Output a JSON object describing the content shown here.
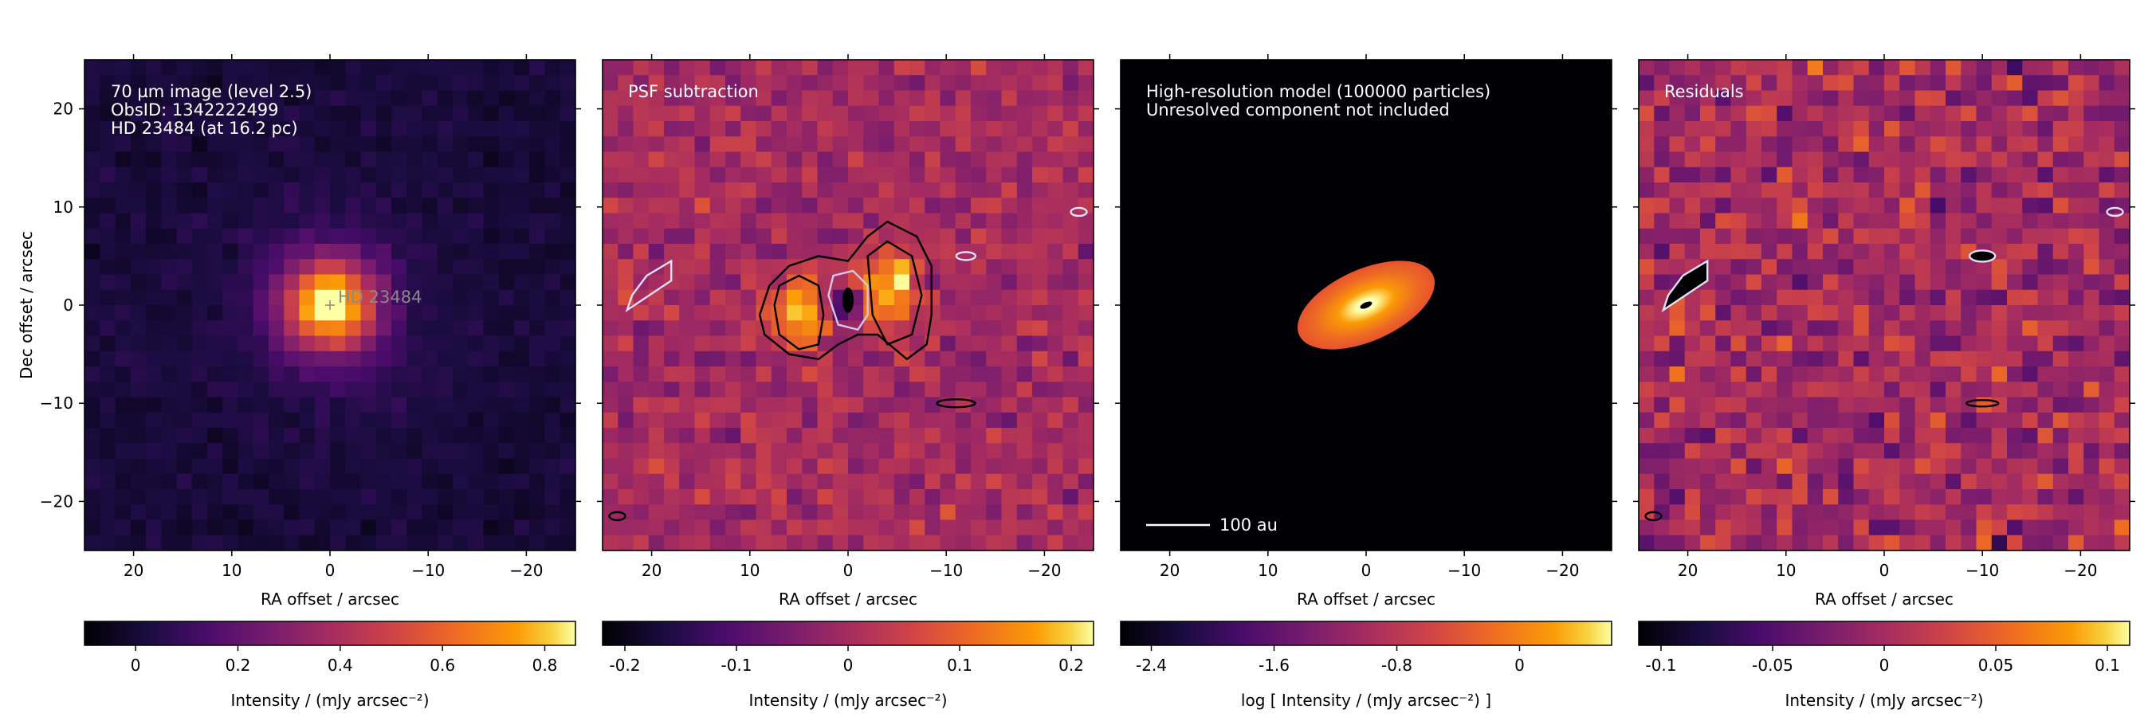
{
  "chart_data": [
    {
      "type": "heatmap",
      "panel": "observed",
      "xlabel": "RA offset / arcsec",
      "ylabel": "Dec offset / arcsec",
      "xlim": [
        25,
        -25
      ],
      "ylim": [
        -25,
        25
      ],
      "xticks": [
        20,
        10,
        0,
        -10,
        -20
      ],
      "yticks": [
        20,
        10,
        0,
        -10,
        -20
      ],
      "xtick_labels": [
        "20",
        "10",
        "0",
        "−10",
        "−20"
      ],
      "ytick_labels": [
        "20",
        "10",
        "0",
        "−10",
        "−20"
      ],
      "annotation_lines": [
        "70 µm image (level 2.5)",
        "ObsID: 1342222499",
        "HD 23484 (at 16.2 pc)"
      ],
      "source_label": "HD 23484",
      "source_position": [
        0,
        0
      ],
      "colormap": "inferno",
      "colorbar": {
        "label": "Intensity / (mJy arcsec⁻²)",
        "range": [
          -0.1,
          0.86
        ],
        "ticks": [
          0,
          0.2,
          0.4,
          0.6,
          0.8
        ],
        "tick_labels": [
          "0",
          "0.2",
          "0.4",
          "0.6",
          "0.8"
        ]
      }
    },
    {
      "type": "heatmap",
      "panel": "psf_subtracted",
      "xlabel": "RA offset / arcsec",
      "xlim": [
        25,
        -25
      ],
      "ylim": [
        -25,
        25
      ],
      "xticks": [
        20,
        10,
        0,
        -10,
        -20
      ],
      "xtick_labels": [
        "20",
        "10",
        "0",
        "−10",
        "−20"
      ],
      "annotation_lines": [
        "PSF subtraction"
      ],
      "colormap": "inferno",
      "contours": true,
      "colorbar": {
        "label": "Intensity / (mJy arcsec⁻²)",
        "range": [
          -0.22,
          0.22
        ],
        "ticks": [
          -0.2,
          -0.1,
          0,
          0.1,
          0.2
        ],
        "tick_labels": [
          "-0.2",
          "-0.1",
          "0",
          "0.1",
          "0.2"
        ]
      }
    },
    {
      "type": "heatmap",
      "panel": "model",
      "xlabel": "RA offset / arcsec",
      "xlim": [
        25,
        -25
      ],
      "ylim": [
        -25,
        25
      ],
      "xticks": [
        20,
        10,
        0,
        -10,
        -20
      ],
      "xtick_labels": [
        "20",
        "10",
        "0",
        "−10",
        "−20"
      ],
      "annotation_lines": [
        "High-resolution model (100000 particles)",
        "Unresolved component not included"
      ],
      "scalebar_label": "100 au",
      "colormap": "inferno",
      "colorbar": {
        "label": "log [ Intensity / (mJy arcsec⁻²) ]",
        "range": [
          -2.6,
          0.6
        ],
        "ticks": [
          -2.4,
          -1.6,
          -0.8,
          0
        ],
        "tick_labels": [
          "-2.4",
          "-1.6",
          "-0.8",
          "0"
        ]
      }
    },
    {
      "type": "heatmap",
      "panel": "residuals",
      "xlabel": "RA offset / arcsec",
      "xlim": [
        25,
        -25
      ],
      "ylim": [
        -25,
        25
      ],
      "xticks": [
        20,
        10,
        0,
        -10,
        -20
      ],
      "xtick_labels": [
        "20",
        "10",
        "0",
        "−10",
        "−20"
      ],
      "annotation_lines": [
        "Residuals"
      ],
      "colormap": "inferno",
      "contours": true,
      "colorbar": {
        "label": "Intensity / (mJy arcsec⁻²)",
        "range": [
          -0.11,
          0.11
        ],
        "ticks": [
          -0.1,
          -0.05,
          0,
          0.05,
          0.1
        ],
        "tick_labels": [
          "-0.1",
          "-0.05",
          "0",
          "0.05",
          "0.1"
        ]
      }
    }
  ]
}
